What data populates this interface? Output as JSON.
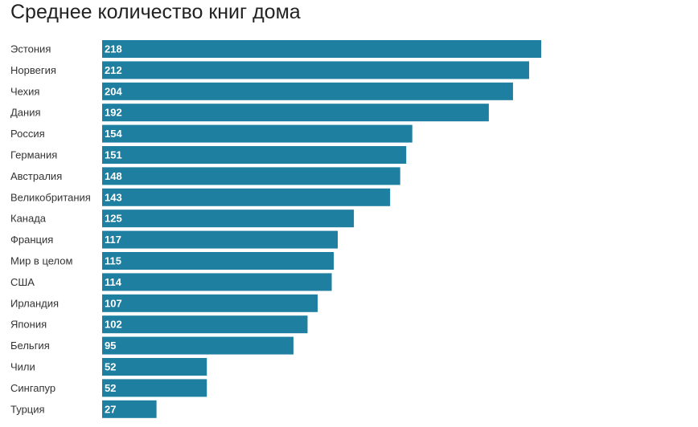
{
  "chart_data": {
    "type": "bar",
    "orientation": "horizontal",
    "title": "Среднее количество книг дома",
    "xlabel": "",
    "ylabel": "",
    "grid": false,
    "bar_color": "#1f7fa0",
    "xlim": [
      0,
      218
    ],
    "categories": [
      "Эстония",
      "Норвегия",
      "Чехия",
      "Дания",
      "Россия",
      "Германия",
      "Австралия",
      "Великобритания",
      "Канада",
      "Франция",
      "Мир в целом",
      "США",
      "Ирландия",
      "Япония",
      "Бельгия",
      "Чили",
      "Сингапур",
      "Турция"
    ],
    "values": [
      218,
      212,
      204,
      192,
      154,
      151,
      148,
      143,
      125,
      117,
      115,
      114,
      107,
      102,
      95,
      52,
      52,
      27
    ]
  }
}
